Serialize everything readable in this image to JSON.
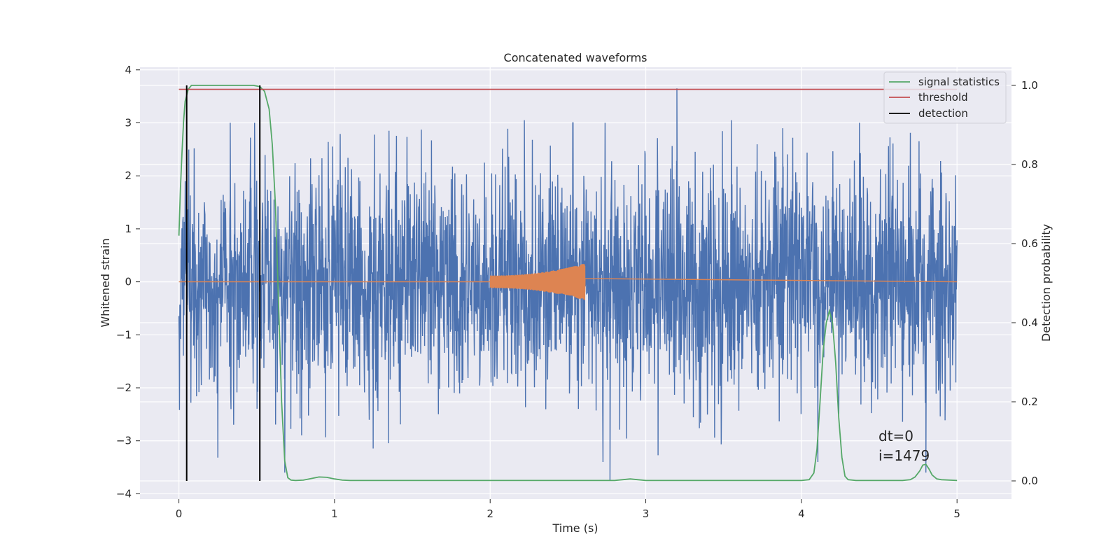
{
  "chart_data": {
    "type": "line",
    "title": "Concatenated waveforms",
    "xlabel": "Time (s)",
    "ylabel": "Whitened strain",
    "y2label": "Detection probability",
    "xlim": [
      -0.25,
      5.35
    ],
    "ylim": [
      -4.1,
      4.05
    ],
    "y2lim": [
      -0.046,
      1.046
    ],
    "x_ticks": [
      0,
      1,
      2,
      3,
      4,
      5
    ],
    "y_ticks": [
      -4,
      -3,
      -2,
      -1,
      0,
      1,
      2,
      3,
      4
    ],
    "y2_ticks": [
      0.0,
      0.2,
      0.4,
      0.6,
      0.8,
      1.0
    ],
    "grid": true,
    "legend_position": "upper-right",
    "colors": {
      "strain": "#4c72b0",
      "injection": "#dd8452",
      "signal_statistics": "#55a868",
      "threshold": "#c44e52",
      "detection": "#000000",
      "plot_background": "#eaeaf2",
      "grid": "#ffffff"
    },
    "series": [
      {
        "name": "",
        "axis": "left",
        "kind": "noise",
        "description_values": {
          "t_start": 0,
          "t_end": 5,
          "typical_amplitude": 1.1,
          "min": -3.75,
          "max": 3.65,
          "notable_peaks": [
            [
              0.33,
              3.0
            ],
            [
              1.35,
              2.85
            ],
            [
              2.22,
              3.05
            ],
            [
              3.2,
              3.65
            ],
            [
              3.55,
              3.05
            ],
            [
              3.88,
              2.9
            ],
            [
              2.77,
              -3.75
            ],
            [
              4.8,
              -3.6
            ],
            [
              0.68,
              -3.6
            ]
          ]
        }
      },
      {
        "name": "",
        "axis": "left",
        "kind": "chirp",
        "x_range": [
          2.0,
          2.61
        ],
        "envelope_start": 0.12,
        "envelope_end": 0.35
      },
      {
        "name": "signal statistics",
        "axis": "right",
        "x": [
          0.0,
          0.01,
          0.02,
          0.03,
          0.04,
          0.06,
          0.08,
          0.1,
          0.15,
          0.2,
          0.3,
          0.4,
          0.48,
          0.52,
          0.55,
          0.58,
          0.6,
          0.62,
          0.64,
          0.66,
          0.68,
          0.7,
          0.72,
          0.75,
          0.8,
          0.85,
          0.9,
          0.95,
          1.0,
          1.05,
          1.1,
          1.5,
          2.0,
          2.5,
          2.8,
          2.85,
          2.9,
          2.95,
          3.0,
          3.5,
          4.0,
          4.05,
          4.08,
          4.1,
          4.12,
          4.14,
          4.16,
          4.18,
          4.2,
          4.22,
          4.24,
          4.26,
          4.28,
          4.3,
          4.35,
          4.5,
          4.65,
          4.7,
          4.73,
          4.76,
          4.78,
          4.8,
          4.82,
          4.84,
          4.87,
          4.9,
          5.0
        ],
        "values": [
          0.62,
          0.74,
          0.83,
          0.91,
          0.96,
          0.99,
          1.0,
          1.0,
          1.0,
          1.0,
          1.0,
          1.0,
          1.0,
          0.997,
          0.985,
          0.94,
          0.85,
          0.7,
          0.45,
          0.2,
          0.05,
          0.008,
          0.002,
          0.001,
          0.002,
          0.006,
          0.01,
          0.009,
          0.005,
          0.002,
          0.001,
          0.001,
          0.001,
          0.001,
          0.001,
          0.003,
          0.005,
          0.003,
          0.001,
          0.001,
          0.001,
          0.003,
          0.02,
          0.08,
          0.2,
          0.33,
          0.4,
          0.43,
          0.4,
          0.3,
          0.16,
          0.06,
          0.012,
          0.003,
          0.001,
          0.001,
          0.001,
          0.003,
          0.01,
          0.025,
          0.04,
          0.042,
          0.03,
          0.015,
          0.005,
          0.003,
          0.001
        ]
      },
      {
        "name": "threshold",
        "axis": "right",
        "x": [
          0,
          5
        ],
        "values": [
          0.99,
          0.99
        ]
      },
      {
        "name": "detection",
        "axis": "right",
        "kind": "vlines",
        "x": [
          0.05,
          0.52
        ],
        "y_range": [
          0.0,
          1.0
        ]
      }
    ],
    "annotations": [
      "dt=0",
      "i=1479"
    ]
  }
}
